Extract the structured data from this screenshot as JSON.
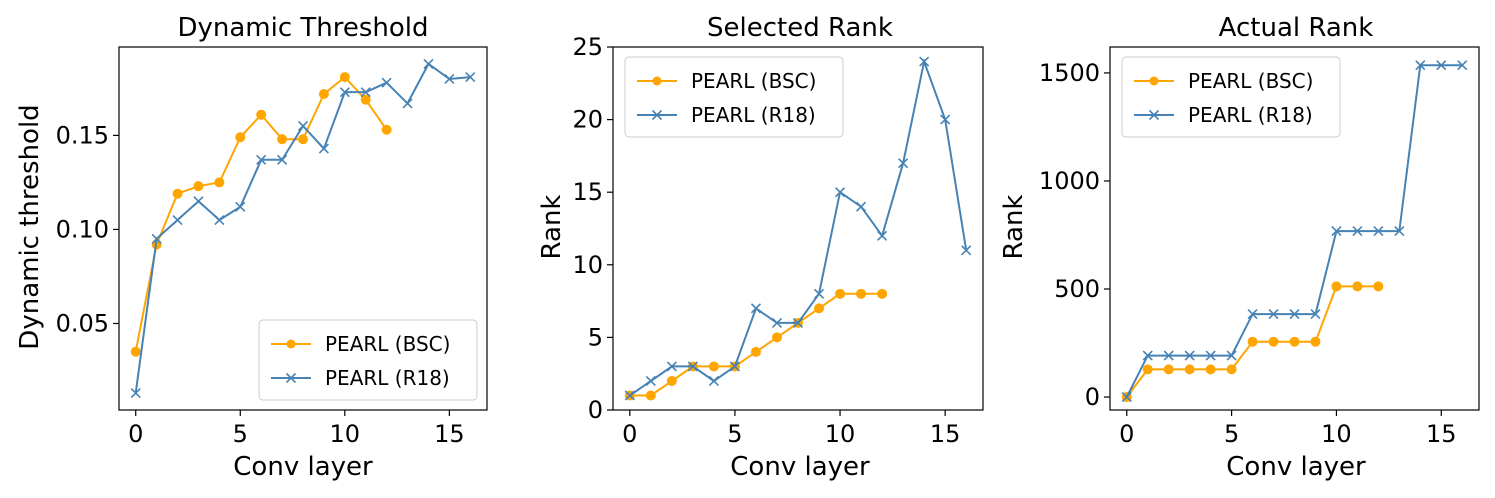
{
  "chart_data": [
    {
      "type": "line",
      "title": "Dynamic Threshold",
      "xlabel": "Conv layer",
      "ylabel": "Dynamic threshold",
      "xlim": [
        -0.8,
        16.8
      ],
      "ylim": [
        0.004,
        0.197
      ],
      "xticks": [
        0,
        5,
        10,
        15
      ],
      "yticks": [
        0.05,
        0.1,
        0.15
      ],
      "ytick_labels": [
        "0.05",
        "0.10",
        "0.15"
      ],
      "legend_position": "lower-right",
      "series": [
        {
          "name": "PEARL (BSC)",
          "color": "#ffa500",
          "marker": "circle",
          "x": [
            0,
            1,
            2,
            3,
            4,
            5,
            6,
            7,
            8,
            9,
            10,
            11,
            12
          ],
          "y": [
            0.035,
            0.092,
            0.119,
            0.123,
            0.125,
            0.149,
            0.161,
            0.148,
            0.148,
            0.172,
            0.181,
            0.169,
            0.153
          ]
        },
        {
          "name": "PEARL (R18)",
          "color": "#4682b4",
          "marker": "x",
          "x": [
            0,
            1,
            2,
            3,
            4,
            5,
            6,
            7,
            8,
            9,
            10,
            11,
            12,
            13,
            14,
            15,
            16
          ],
          "y": [
            0.013,
            0.095,
            0.105,
            0.115,
            0.105,
            0.112,
            0.137,
            0.137,
            0.155,
            0.143,
            0.173,
            0.173,
            0.178,
            0.167,
            0.188,
            0.18,
            0.181
          ]
        }
      ]
    },
    {
      "type": "line",
      "title": "Selected Rank",
      "xlabel": "Conv layer",
      "ylabel": "Rank",
      "xlim": [
        -0.8,
        16.8
      ],
      "ylim": [
        0,
        25
      ],
      "xticks": [
        0,
        5,
        10,
        15
      ],
      "yticks": [
        0,
        5,
        10,
        15,
        20,
        25
      ],
      "ytick_labels": [
        "0",
        "5",
        "10",
        "15",
        "20",
        "25"
      ],
      "legend_position": "upper-left",
      "series": [
        {
          "name": "PEARL (BSC)",
          "color": "#ffa500",
          "marker": "circle",
          "x": [
            0,
            1,
            2,
            3,
            4,
            5,
            6,
            7,
            8,
            9,
            10,
            11,
            12
          ],
          "y": [
            1,
            1,
            2,
            3,
            3,
            3,
            4,
            5,
            6,
            7,
            8,
            8,
            8
          ]
        },
        {
          "name": "PEARL (R18)",
          "color": "#4682b4",
          "marker": "x",
          "x": [
            0,
            1,
            2,
            3,
            4,
            5,
            6,
            7,
            8,
            9,
            10,
            11,
            12,
            13,
            14,
            15,
            16
          ],
          "y": [
            1,
            2,
            3,
            3,
            2,
            3,
            7,
            6,
            6,
            8,
            15,
            14,
            12,
            17,
            24,
            20,
            11
          ]
        }
      ]
    },
    {
      "type": "line",
      "title": "Actual Rank",
      "xlabel": "Conv layer",
      "ylabel": "Rank",
      "xlim": [
        -0.8,
        16.8
      ],
      "ylim": [
        -60,
        1620
      ],
      "xticks": [
        0,
        5,
        10,
        15
      ],
      "yticks": [
        0,
        500,
        1000,
        1500
      ],
      "ytick_labels": [
        "0",
        "500",
        "1000",
        "1500"
      ],
      "legend_position": "upper-left",
      "series": [
        {
          "name": "PEARL (BSC)",
          "color": "#ffa500",
          "marker": "circle",
          "x": [
            0,
            1,
            2,
            3,
            4,
            5,
            6,
            7,
            8,
            9,
            10,
            11,
            12
          ],
          "y": [
            0,
            128,
            128,
            128,
            128,
            128,
            256,
            256,
            256,
            256,
            512,
            512,
            512
          ]
        },
        {
          "name": "PEARL (R18)",
          "color": "#4682b4",
          "marker": "x",
          "x": [
            0,
            1,
            2,
            3,
            4,
            5,
            6,
            7,
            8,
            9,
            10,
            11,
            12,
            13,
            14,
            15,
            16
          ],
          "y": [
            0,
            192,
            192,
            192,
            192,
            192,
            384,
            384,
            384,
            384,
            768,
            768,
            768,
            768,
            1536,
            1536,
            1536
          ]
        }
      ]
    }
  ]
}
